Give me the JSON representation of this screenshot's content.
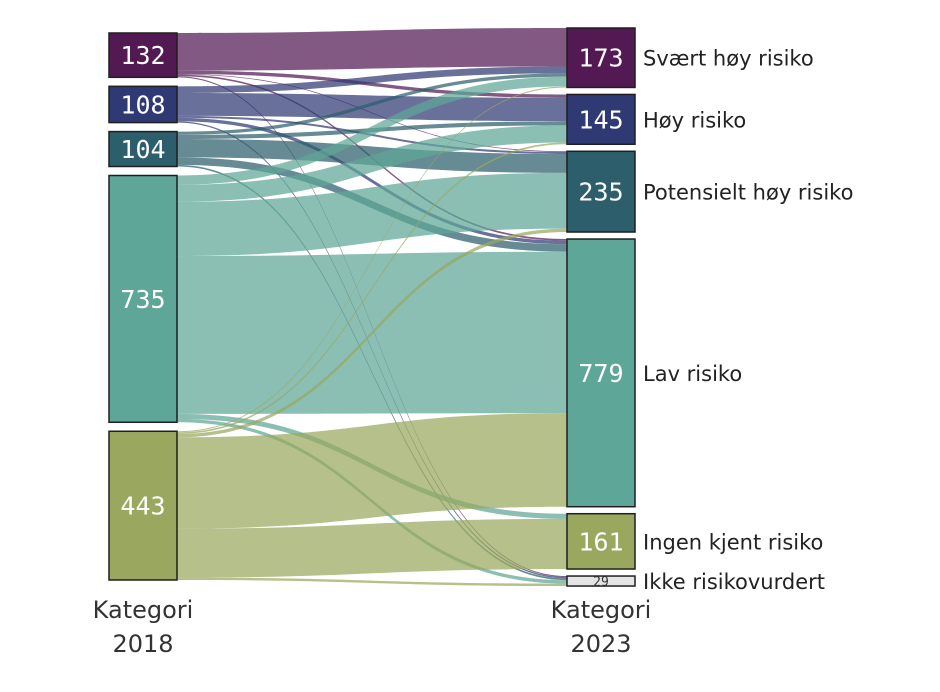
{
  "chart_data": {
    "type": "sankey",
    "left_axis": [
      "Kategori",
      "2018"
    ],
    "right_axis": [
      "Kategori",
      "2023"
    ],
    "left_nodes": [
      {
        "id": "L0",
        "value": 132,
        "color": "#521952"
      },
      {
        "id": "L1",
        "value": 108,
        "color": "#2f3a75"
      },
      {
        "id": "L2",
        "value": 104,
        "color": "#2c5e6b"
      },
      {
        "id": "L3",
        "value": 735,
        "color": "#5ea697"
      },
      {
        "id": "L4",
        "value": 443,
        "color": "#99a85e"
      }
    ],
    "right_nodes": [
      {
        "id": "R0",
        "label": "Svært høy risiko",
        "value": 173,
        "color": "#521952"
      },
      {
        "id": "R1",
        "label": "Høy risiko",
        "value": 145,
        "color": "#2f3a75"
      },
      {
        "id": "R2",
        "label": "Potensielt høy risiko",
        "value": 235,
        "color": "#2c5e6b"
      },
      {
        "id": "R3",
        "label": "Lav risiko",
        "value": 779,
        "color": "#5ea697"
      },
      {
        "id": "R4",
        "label": "Ingen kjent risiko",
        "value": 161,
        "color": "#99a85e"
      },
      {
        "id": "R5",
        "label": "Ikke risikovurdert",
        "value": 29,
        "color": "#e4e4e4"
      }
    ],
    "flows": [
      {
        "source": 0,
        "target": 0,
        "value": 112
      },
      {
        "source": 0,
        "target": 1,
        "value": 10
      },
      {
        "source": 0,
        "target": 2,
        "value": 2
      },
      {
        "source": 0,
        "target": 3,
        "value": 5
      },
      {
        "source": 0,
        "target": 5,
        "value": 3
      },
      {
        "source": 1,
        "target": 0,
        "value": 20
      },
      {
        "source": 1,
        "target": 1,
        "value": 68
      },
      {
        "source": 1,
        "target": 2,
        "value": 6
      },
      {
        "source": 1,
        "target": 3,
        "value": 10
      },
      {
        "source": 1,
        "target": 5,
        "value": 4
      },
      {
        "source": 2,
        "target": 0,
        "value": 10
      },
      {
        "source": 2,
        "target": 1,
        "value": 12
      },
      {
        "source": 2,
        "target": 2,
        "value": 55
      },
      {
        "source": 2,
        "target": 3,
        "value": 22
      },
      {
        "source": 2,
        "target": 5,
        "value": 5
      },
      {
        "source": 3,
        "target": 0,
        "value": 28
      },
      {
        "source": 3,
        "target": 1,
        "value": 50
      },
      {
        "source": 3,
        "target": 2,
        "value": 162
      },
      {
        "source": 3,
        "target": 3,
        "value": 470
      },
      {
        "source": 3,
        "target": 4,
        "value": 15
      },
      {
        "source": 3,
        "target": 5,
        "value": 10
      },
      {
        "source": 4,
        "target": 0,
        "value": 3
      },
      {
        "source": 4,
        "target": 1,
        "value": 5
      },
      {
        "source": 4,
        "target": 2,
        "value": 10
      },
      {
        "source": 4,
        "target": 3,
        "value": 272
      },
      {
        "source": 4,
        "target": 4,
        "value": 146
      },
      {
        "source": 4,
        "target": 5,
        "value": 7
      }
    ]
  }
}
